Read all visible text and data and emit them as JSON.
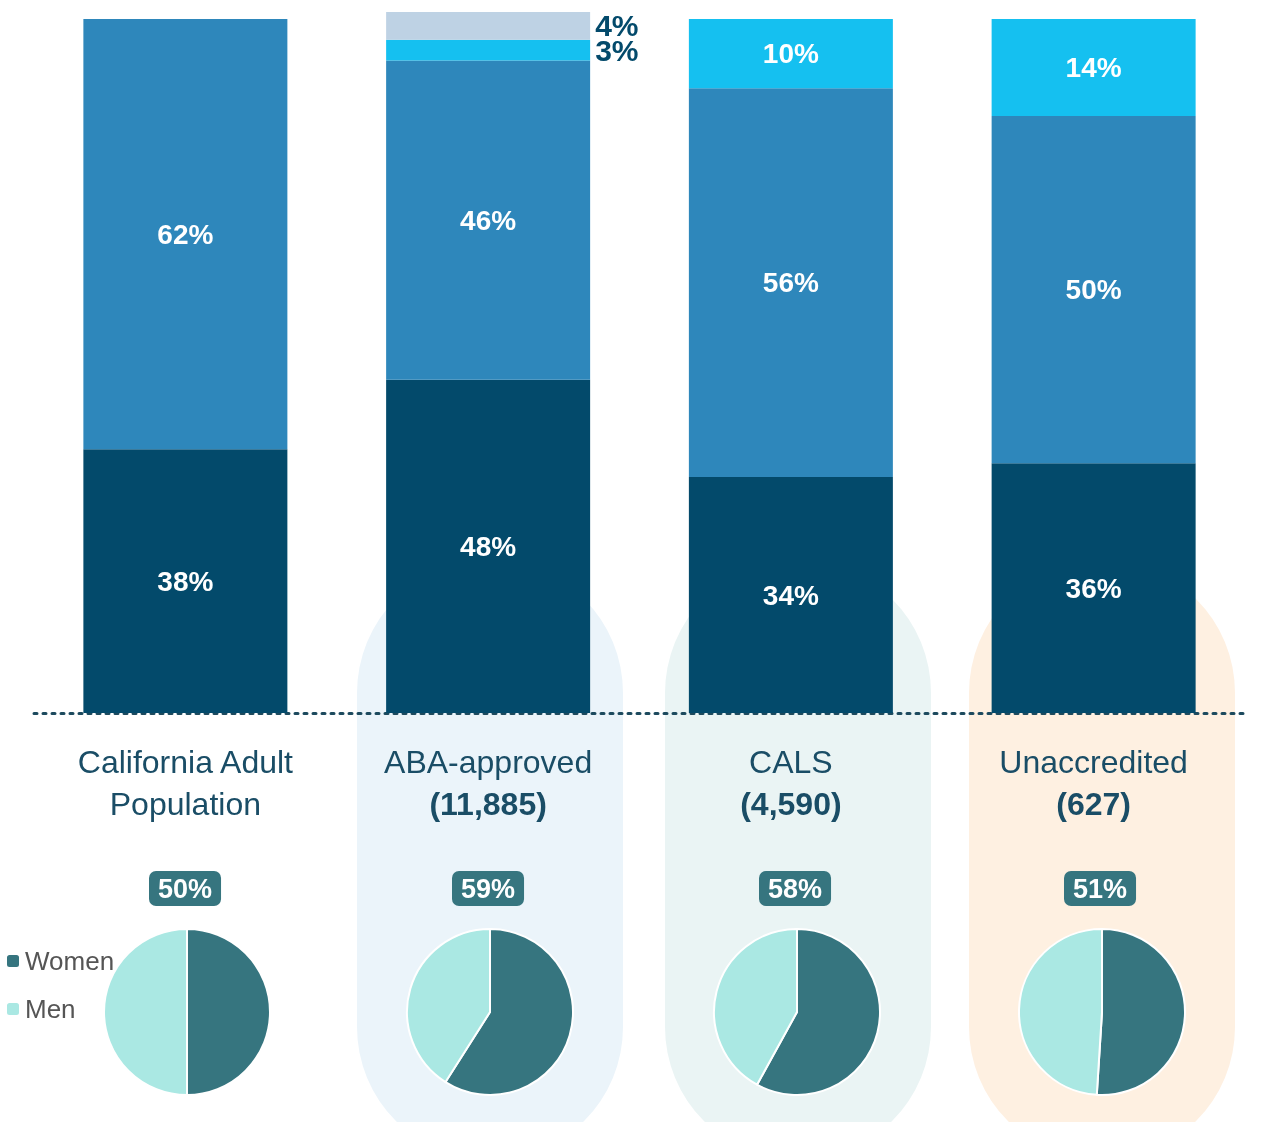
{
  "chart_data": [
    {
      "type": "bar",
      "stacked": true,
      "tick_labels": "x",
      "legend": false,
      "categories": [
        "California Adult\nPopulation",
        "ABA-approved\n(11,885)",
        "CALS\n(4,590)",
        "Unaccredited\n(627)"
      ],
      "series": [
        {
          "color": "#034a6b",
          "values": [
            38,
            48,
            34,
            36
          ],
          "value_labels": [
            "38%",
            "48%",
            "34%",
            "36%"
          ]
        },
        {
          "color": "#2e87bb",
          "values": [
            62,
            46,
            56,
            50
          ],
          "value_labels": [
            "62%",
            "46%",
            "56%",
            "50%"
          ]
        },
        {
          "color": "#15c0f0",
          "values": [
            null,
            3,
            10,
            14
          ],
          "value_labels": [
            null,
            "3%",
            "10%",
            "14%"
          ]
        },
        {
          "color": "#bed2e4",
          "values": [
            null,
            4,
            null,
            null
          ],
          "value_labels": [
            null,
            "4%",
            null,
            null
          ]
        }
      ]
    },
    {
      "type": "pie",
      "legend": "left",
      "categories": [
        "Women",
        "Men"
      ],
      "values": [
        50,
        50
      ],
      "colors": [
        "#36757f",
        "#aae8e3"
      ],
      "value_labels": [
        "50%",
        null
      ]
    },
    {
      "type": "pie",
      "values": [
        59,
        41
      ],
      "colors": [
        "#36757f",
        "#aae8e3"
      ],
      "value_labels": [
        "59%",
        null
      ]
    },
    {
      "type": "pie",
      "values": [
        58,
        42
      ],
      "colors": [
        "#36757f",
        "#aae8e3"
      ],
      "value_labels": [
        "58%",
        null
      ]
    },
    {
      "type": "pie",
      "values": [
        51,
        49
      ],
      "colors": [
        "#36757f",
        "#aae8e3"
      ],
      "value_labels": [
        "51%",
        null
      ]
    }
  ]
}
